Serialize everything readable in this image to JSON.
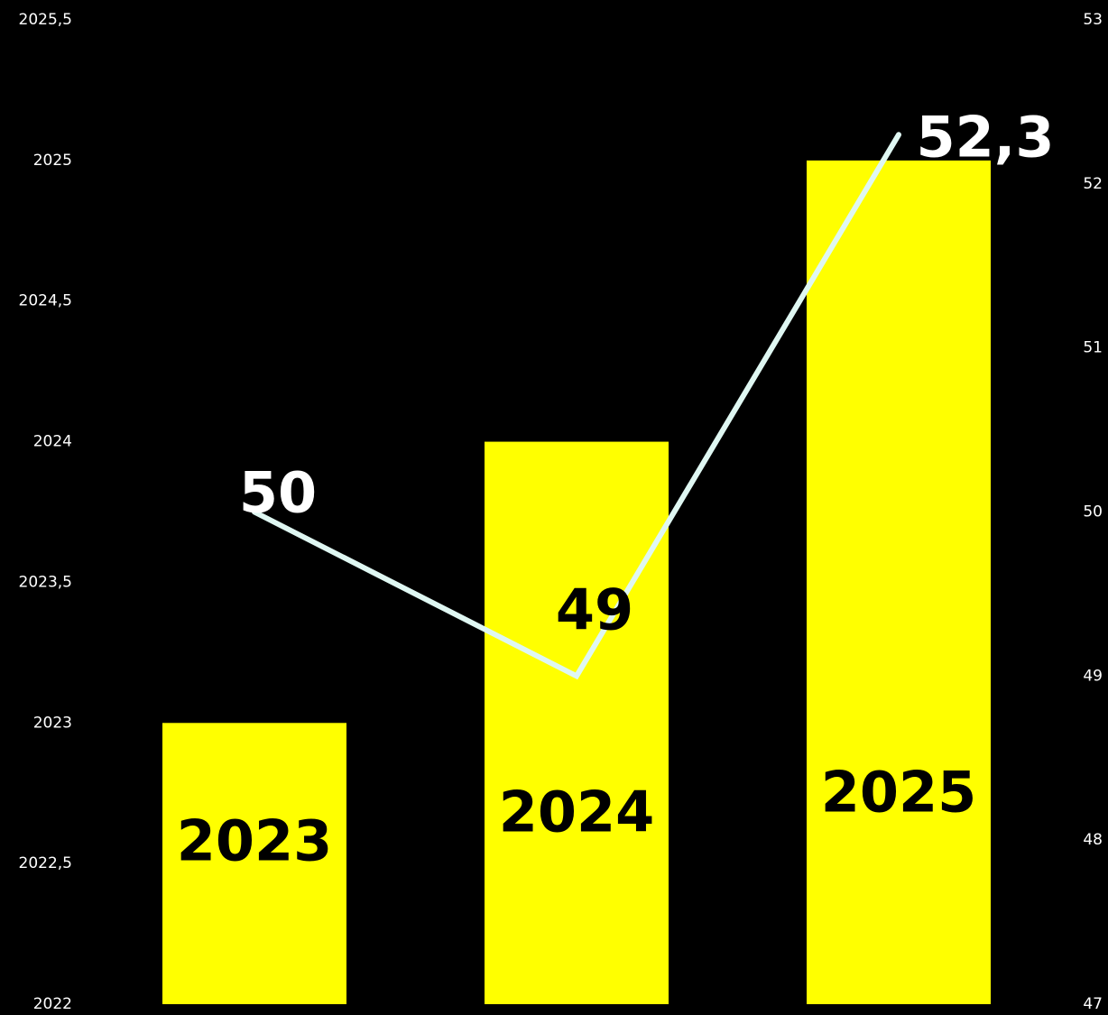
{
  "chart_data": {
    "type": "bar",
    "categories": [
      "2023",
      "2024",
      "2025"
    ],
    "series": [
      {
        "type": "bar",
        "axis": "left",
        "values": [
          2023,
          2024,
          2025
        ],
        "labels": [
          "2023",
          "2024",
          "2025"
        ]
      },
      {
        "type": "line",
        "axis": "right",
        "values": [
          50,
          49,
          52.3
        ],
        "labels": [
          "50",
          "49",
          "52,3"
        ]
      }
    ],
    "left_axis": {
      "ylim": [
        2022,
        2025.5
      ],
      "ticks": [
        2022,
        2022.5,
        2023,
        2023.5,
        2024,
        2024.5,
        2025,
        2025.5
      ],
      "tick_labels": [
        "2022",
        "2022,5",
        "2023",
        "2023,5",
        "2024",
        "2024,5",
        "2025",
        "2025,5"
      ]
    },
    "right_axis": {
      "ylim": [
        47,
        53
      ],
      "ticks": [
        47,
        48,
        49,
        50,
        51,
        52,
        53
      ],
      "tick_labels": [
        "47",
        "48",
        "49",
        "50",
        "51",
        "52",
        "53"
      ]
    },
    "grid": false,
    "legend": "none",
    "colors": {
      "background": "#000000",
      "bar": "#ffff00",
      "line": "#dff7f2",
      "text": "#ffffff"
    }
  }
}
